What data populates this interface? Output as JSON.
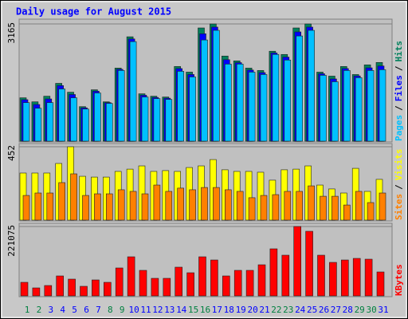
{
  "chart_data": [
    {
      "type": "bar",
      "title": "Daily usage for August 2015",
      "legend_separator": "/",
      "categories": [
        "1",
        "2",
        "3",
        "4",
        "5",
        "6",
        "7",
        "8",
        "9",
        "10",
        "11",
        "12",
        "13",
        "14",
        "15",
        "16",
        "17",
        "18",
        "19",
        "20",
        "21",
        "22",
        "23",
        "24",
        "25",
        "26",
        "27",
        "28",
        "29",
        "30",
        "31"
      ],
      "ylim": [
        0,
        3165
      ],
      "yticks": [
        3165
      ],
      "series": [
        {
          "name": "Hits",
          "color": "#00805c",
          "values": [
            1171,
            1062,
            1214,
            1561,
            1322,
            932,
            1387,
            1062,
            1973,
            2818,
            1279,
            1214,
            1192,
            2016,
            1864,
            3057,
            3165,
            2298,
            2168,
            1973,
            1908,
            2428,
            2341,
            3057,
            3165,
            1864,
            1756,
            2016,
            1799,
            2060,
            2125
          ]
        },
        {
          "name": "Files",
          "color": "#0000ff",
          "values": [
            1120,
            990,
            1140,
            1500,
            1260,
            900,
            1350,
            1040,
            1940,
            2760,
            1240,
            1180,
            1160,
            1960,
            1800,
            2900,
            3080,
            2200,
            2120,
            1920,
            1850,
            2380,
            2270,
            2950,
            3080,
            1820,
            1680,
            1960,
            1760,
            1980,
            2030
          ]
        },
        {
          "name": "Pages",
          "color": "#00c0ff",
          "values": [
            1041,
            889,
            1041,
            1409,
            1171,
            867,
            1301,
            1019,
            1908,
            2688,
            1192,
            1149,
            1127,
            1886,
            1734,
            2732,
            2992,
            2081,
            2081,
            1864,
            1799,
            2341,
            2190,
            2840,
            2992,
            1778,
            1604,
            1908,
            1713,
            1908,
            1929
          ]
        }
      ]
    },
    {
      "type": "bar",
      "ylim": [
        0,
        452
      ],
      "yticks": [
        452
      ],
      "series": [
        {
          "name": "Visits",
          "color": "#ffff00",
          "values": [
            290,
            290,
            290,
            349,
            452,
            270,
            265,
            265,
            300,
            314,
            334,
            300,
            305,
            300,
            324,
            334,
            373,
            310,
            300,
            300,
            295,
            246,
            310,
            314,
            334,
            216,
            192,
            167,
            319,
            177,
            251
          ]
        },
        {
          "name": "Sites",
          "color": "#ff8000",
          "values": [
            152,
            167,
            167,
            231,
            285,
            152,
            162,
            162,
            187,
            177,
            162,
            216,
            177,
            197,
            187,
            201,
            201,
            187,
            177,
            138,
            152,
            157,
            177,
            177,
            211,
            147,
            147,
            93,
            177,
            108,
            167
          ]
        }
      ]
    },
    {
      "type": "bar",
      "ylim": [
        0,
        221075
      ],
      "yticks": [
        221075
      ],
      "x_label_colors": [
        "#008040",
        "#008040",
        "#0000ff",
        "#0000ff",
        "#0000ff",
        "#0000ff",
        "#0000ff",
        "#008040",
        "#008040",
        "#0000ff",
        "#0000ff",
        "#0000ff",
        "#0000ff",
        "#0000ff",
        "#008040",
        "#008040",
        "#0000ff",
        "#0000ff",
        "#0000ff",
        "#0000ff",
        "#0000ff",
        "#008040",
        "#008040",
        "#0000ff",
        "#0000ff",
        "#0000ff",
        "#0000ff",
        "#0000ff",
        "#008040",
        "#008040",
        "#0000ff"
      ],
      "series": [
        {
          "name": "KBytes",
          "color": "#ff0000",
          "values": [
            43197,
            25410,
            33033,
            63525,
            53361,
            30492,
            50820,
            43197,
            88935,
            124509,
            81312,
            55902,
            55902,
            91476,
            73689,
            124509,
            114345,
            63525,
            81312,
            81312,
            99099,
            149919,
            129591,
            221075,
            205821,
            129591,
            106722,
            114345,
            119427,
            116886,
            76230
          ]
        }
      ]
    }
  ]
}
